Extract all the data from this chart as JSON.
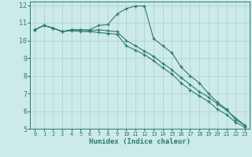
{
  "xlabel": "Humidex (Indice chaleur)",
  "bg_color": "#cceae8",
  "line_color": "#2d7a6a",
  "grid_color": "#aacfcc",
  "xlim": [
    -0.5,
    23.5
  ],
  "ylim": [
    5,
    12.2
  ],
  "xticks": [
    0,
    1,
    2,
    3,
    4,
    5,
    6,
    7,
    8,
    9,
    10,
    11,
    12,
    13,
    14,
    15,
    16,
    17,
    18,
    19,
    20,
    21,
    22,
    23
  ],
  "yticks": [
    5,
    6,
    7,
    8,
    9,
    10,
    11,
    12
  ],
  "series": [
    {
      "x": [
        0,
        1,
        2,
        3,
        4,
        5,
        6,
        7,
        8,
        9,
        10,
        11,
        12,
        13,
        14,
        15,
        16,
        17,
        18,
        19,
        20,
        21,
        22,
        23
      ],
      "y": [
        10.6,
        10.85,
        10.7,
        10.5,
        10.6,
        10.6,
        10.6,
        10.85,
        10.9,
        11.5,
        11.8,
        11.95,
        11.95,
        10.1,
        9.7,
        9.3,
        8.5,
        8.0,
        7.6,
        7.0,
        6.5,
        6.1,
        5.5,
        5.2
      ],
      "marker": "+"
    },
    {
      "x": [
        0,
        1,
        2,
        3,
        4,
        5,
        6,
        7,
        8,
        9,
        10,
        11,
        12,
        13,
        14,
        15,
        16,
        17,
        18,
        19,
        20,
        21,
        22,
        23
      ],
      "y": [
        10.6,
        10.85,
        10.7,
        10.5,
        10.6,
        10.6,
        10.55,
        10.6,
        10.55,
        10.5,
        10.0,
        9.7,
        9.4,
        9.1,
        8.7,
        8.35,
        7.9,
        7.5,
        7.1,
        6.8,
        6.4,
        6.05,
        5.6,
        5.2
      ],
      "marker": "+"
    },
    {
      "x": [
        0,
        1,
        2,
        3,
        4,
        5,
        6,
        7,
        8,
        9,
        10,
        11,
        12,
        13,
        14,
        15,
        16,
        17,
        18,
        19,
        20,
        21,
        22,
        23
      ],
      "y": [
        10.6,
        10.85,
        10.7,
        10.5,
        10.55,
        10.5,
        10.5,
        10.45,
        10.4,
        10.35,
        9.7,
        9.45,
        9.2,
        8.85,
        8.45,
        8.1,
        7.6,
        7.2,
        6.85,
        6.55,
        6.1,
        5.8,
        5.35,
        5.1
      ],
      "marker": "+"
    }
  ]
}
